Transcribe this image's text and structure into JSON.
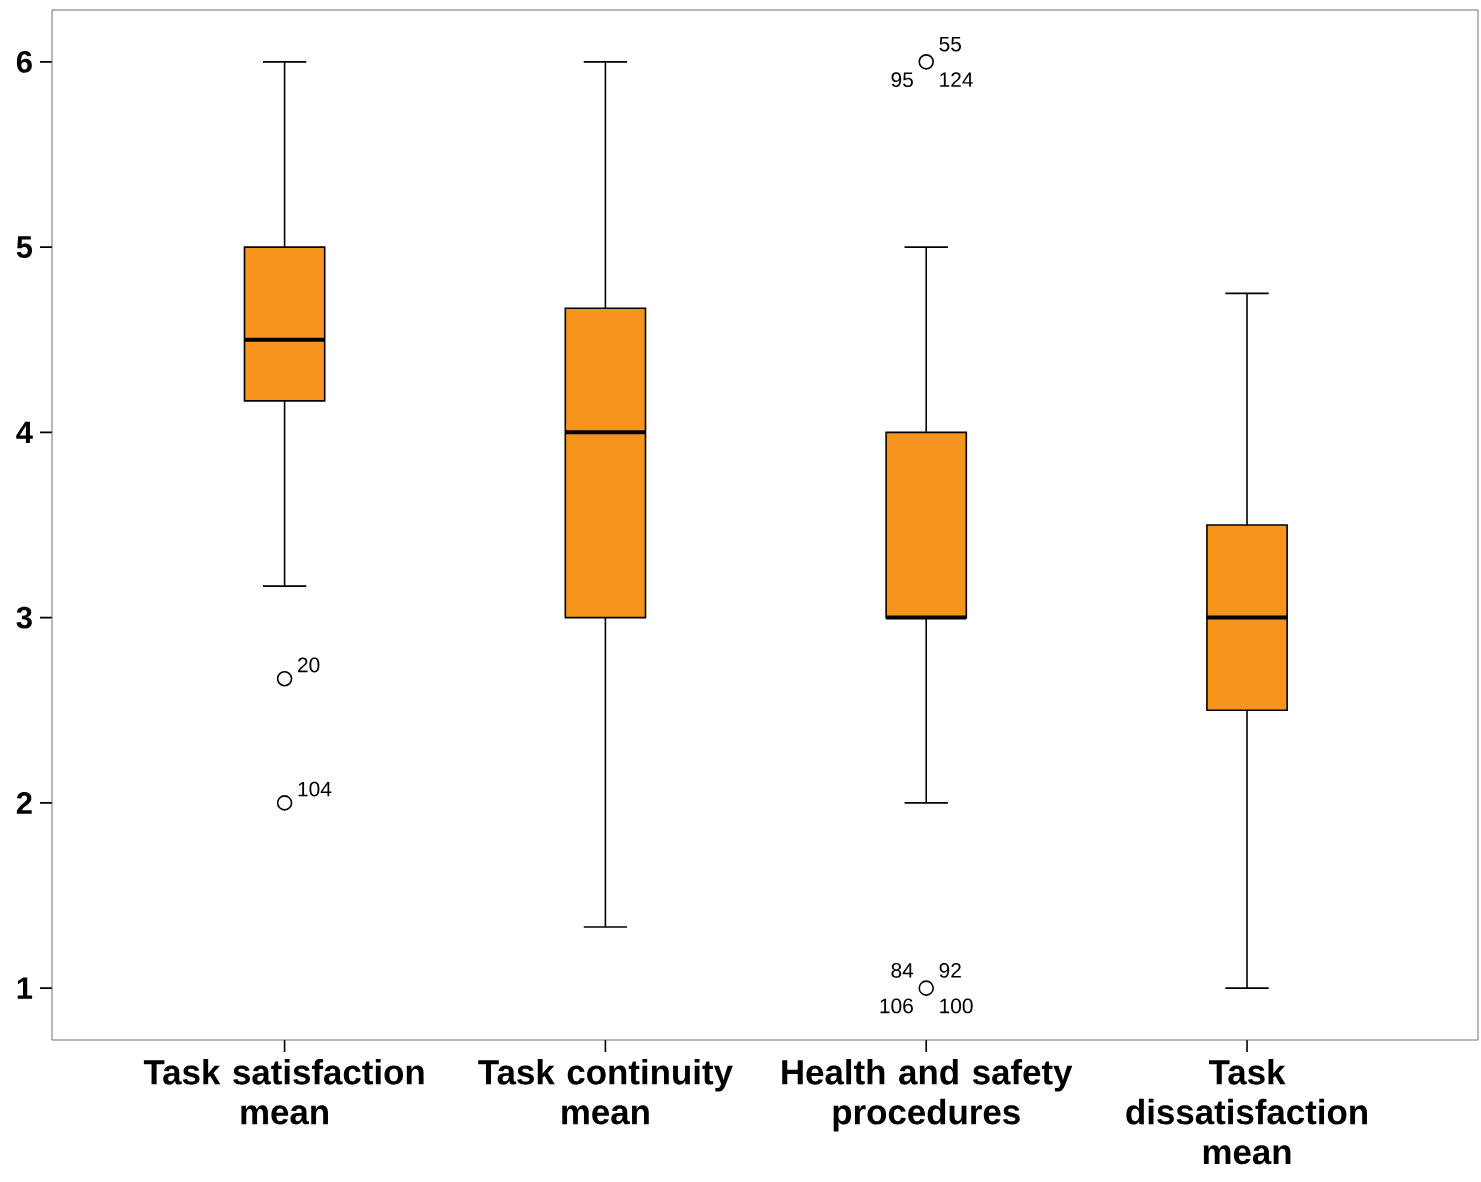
{
  "chart_data": {
    "type": "box",
    "categories": [
      "Task satisfaction mean",
      "Task continuity mean",
      "Health and safety procedures",
      "Task dissatisfaction mean"
    ],
    "boxes": [
      {
        "low": 3.17,
        "q1": 4.17,
        "median": 4.5,
        "q3": 5,
        "high": 6,
        "outliers": [
          2.67,
          2
        ]
      },
      {
        "low": 1.33,
        "q1": 3,
        "median": 4,
        "q3": 4.67,
        "high": 6
      },
      {
        "low": 2,
        "q1": 3,
        "median": 3,
        "q3": 4,
        "high": 5,
        "outliers": [
          6,
          1
        ]
      },
      {
        "low": 1,
        "q1": 2.5,
        "median": 3,
        "q3": 3.5,
        "high": 4.75
      }
    ],
    "color": "#f7941d",
    "ylim": [
      0.72,
      6.28
    ],
    "yticks": [
      1,
      2,
      3,
      4,
      5,
      6
    ],
    "grid": false,
    "annotations": [
      "20",
      "104",
      "55",
      "95",
      "124",
      "84",
      "92",
      "106",
      "100"
    ]
  }
}
